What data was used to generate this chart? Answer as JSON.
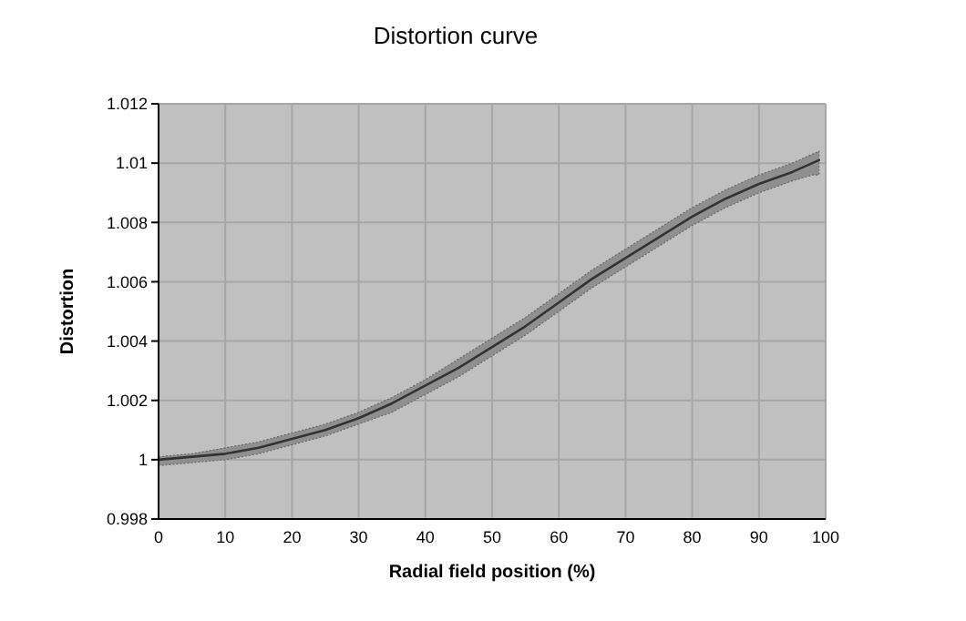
{
  "chart_data": {
    "type": "line",
    "title": "Distortion curve",
    "xlabel": "Radial field position (%)",
    "ylabel": "Distortion",
    "xlim": [
      0,
      100
    ],
    "xticks": [
      0,
      10,
      20,
      30,
      40,
      50,
      60,
      70,
      80,
      90,
      100
    ],
    "ylim": [
      0.998,
      1.012
    ],
    "yticks": [
      0.998,
      1,
      1.002,
      1.004,
      1.006,
      1.008,
      1.01,
      1.012
    ],
    "grid": true,
    "series": [
      {
        "color": "#333333",
        "x": [
          0,
          5,
          10,
          15,
          20,
          25,
          30,
          35,
          40,
          45,
          50,
          55,
          60,
          65,
          70,
          75,
          80,
          85,
          90,
          95,
          98,
          99
        ],
        "values": [
          1.0,
          1.0001,
          1.0002,
          1.0004,
          1.0007,
          1.001,
          1.0014,
          1.0019,
          1.0025,
          1.0031,
          1.0038,
          1.0045,
          1.0053,
          1.0061,
          1.0068,
          1.0075,
          1.0082,
          1.0088,
          1.0093,
          1.0097,
          1.01,
          1.0101
        ],
        "lower": [
          0.9998,
          0.9999,
          1.0,
          1.0002,
          1.0005,
          1.0008,
          1.0012,
          1.0016,
          1.0022,
          1.0028,
          1.0035,
          1.0042,
          1.005,
          1.0058,
          1.0065,
          1.0072,
          1.0079,
          1.0085,
          1.009,
          1.0094,
          1.0096,
          1.0096
        ],
        "upper": [
          1.0001,
          1.0002,
          1.0004,
          1.0006,
          1.0009,
          1.0012,
          1.0016,
          1.0021,
          1.0027,
          1.0034,
          1.0041,
          1.0048,
          1.0056,
          1.0064,
          1.0071,
          1.0078,
          1.0085,
          1.0091,
          1.0096,
          1.01,
          1.0103,
          1.0104
        ]
      }
    ]
  }
}
